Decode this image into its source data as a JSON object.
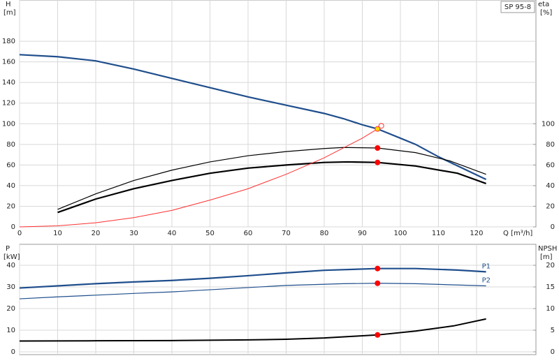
{
  "chart_data": [
    {
      "type": "line",
      "title": "SP 95-8",
      "ylabel": "H",
      "yunit": "[m]",
      "y2label": "eta",
      "y2unit": "[%]",
      "xlabel": "Q [m³/h]",
      "xlim": [
        0,
        135.6
      ],
      "xticks": [
        0,
        10,
        20,
        30,
        40,
        50,
        60,
        70,
        80,
        90,
        100,
        110,
        120
      ],
      "ylim": [
        0,
        220
      ],
      "yticks": [
        0,
        20,
        40,
        60,
        80,
        100,
        120,
        140,
        160,
        180
      ],
      "y2lim": [
        0,
        220
      ],
      "y2ticks": [
        0,
        20,
        40,
        60,
        80,
        100
      ],
      "grid": true,
      "series": [
        {
          "color": "#1f4e8c",
          "width": 2.2,
          "x": [
            0,
            10,
            20,
            30,
            40,
            50,
            60,
            70,
            80,
            85,
            90,
            94,
            100,
            104,
            110,
            122.5
          ],
          "values": [
            167,
            165,
            161,
            153,
            144,
            135,
            126,
            118,
            110,
            105,
            99,
            95,
            86,
            80,
            68,
            46
          ]
        },
        {
          "color": "#000000",
          "width": 1.2,
          "axis": "y2",
          "x": [
            10,
            20,
            30,
            40,
            50,
            60,
            70,
            80,
            85,
            94,
            104,
            113,
            122.5
          ],
          "values": [
            17,
            32,
            45,
            55,
            63,
            69,
            73,
            76,
            77,
            76.5,
            72,
            64,
            51
          ]
        },
        {
          "color": "#000000",
          "width": 2.2,
          "axis": "y2",
          "x": [
            10,
            20,
            30,
            40,
            50,
            60,
            70,
            80,
            86,
            94,
            104,
            115,
            122.5
          ],
          "values": [
            14,
            27,
            37,
            45,
            52,
            57,
            60,
            62.5,
            63,
            62.5,
            59,
            52,
            42
          ]
        },
        {
          "color": "#ff3030",
          "width": 1,
          "x": [
            0,
            10,
            20,
            30,
            40,
            50,
            60,
            70,
            80,
            90,
            94
          ],
          "values": [
            0,
            1,
            4,
            9,
            16,
            26,
            37,
            51,
            67,
            86,
            95
          ]
        }
      ],
      "markers": [
        {
          "x": 94,
          "y": 95,
          "color": "#ffd700",
          "stroke": "#ff3030"
        },
        {
          "x": 95,
          "y": 98,
          "color": "none",
          "stroke": "#ff3030"
        },
        {
          "x": 94,
          "y": 76.5,
          "color": "#ff0000",
          "stroke": "#ff0000",
          "axis": "y2"
        },
        {
          "x": 94,
          "y": 62.5,
          "color": "#ff0000",
          "stroke": "#ff0000",
          "axis": "y2"
        }
      ]
    },
    {
      "type": "line",
      "ylabel": "P",
      "yunit": "[kW]",
      "y2label": "NPSH",
      "y2unit": "[m]",
      "xlim": [
        0,
        135.6
      ],
      "ylim": [
        -1.3,
        49.7
      ],
      "yticks": [
        0,
        10,
        20,
        30,
        40
      ],
      "y2lim": [
        -0.65,
        24.85
      ],
      "y2ticks": [
        0,
        5,
        10,
        15,
        20
      ],
      "grid": true,
      "series": [
        {
          "name": "P1",
          "color": "#1f4e8c",
          "width": 2.2,
          "x": [
            0,
            10,
            20,
            30,
            40,
            50,
            60,
            70,
            80,
            94,
            104,
            115,
            122.5
          ],
          "values": [
            29.5,
            30.5,
            31.5,
            32.3,
            33,
            34,
            35.2,
            36.5,
            37.7,
            38.5,
            38.5,
            37.8,
            37
          ]
        },
        {
          "name": "P2",
          "color": "#1f4e8c",
          "width": 1.2,
          "x": [
            0,
            10,
            20,
            30,
            40,
            50,
            60,
            70,
            85,
            94,
            104,
            122.5
          ],
          "values": [
            24.5,
            25.4,
            26.2,
            27,
            27.7,
            28.7,
            29.7,
            30.7,
            31.5,
            31.7,
            31.5,
            30.5
          ]
        },
        {
          "color": "#000000",
          "width": 2,
          "axis": "y2",
          "x": [
            0,
            20,
            40,
            60,
            70,
            80,
            88,
            94,
            104,
            114,
            122.5
          ],
          "values": [
            2.5,
            2.55,
            2.6,
            2.75,
            2.9,
            3.2,
            3.6,
            3.9,
            4.8,
            6,
            7.6
          ]
        }
      ],
      "markers": [
        {
          "x": 94,
          "y": 38.5,
          "color": "#ff0000",
          "stroke": "#ff0000"
        },
        {
          "x": 94,
          "y": 31.7,
          "color": "#ff0000",
          "stroke": "#ff0000"
        },
        {
          "x": 94,
          "y": 3.9,
          "color": "#ff0000",
          "stroke": "#ff0000",
          "axis": "y2"
        }
      ]
    }
  ]
}
